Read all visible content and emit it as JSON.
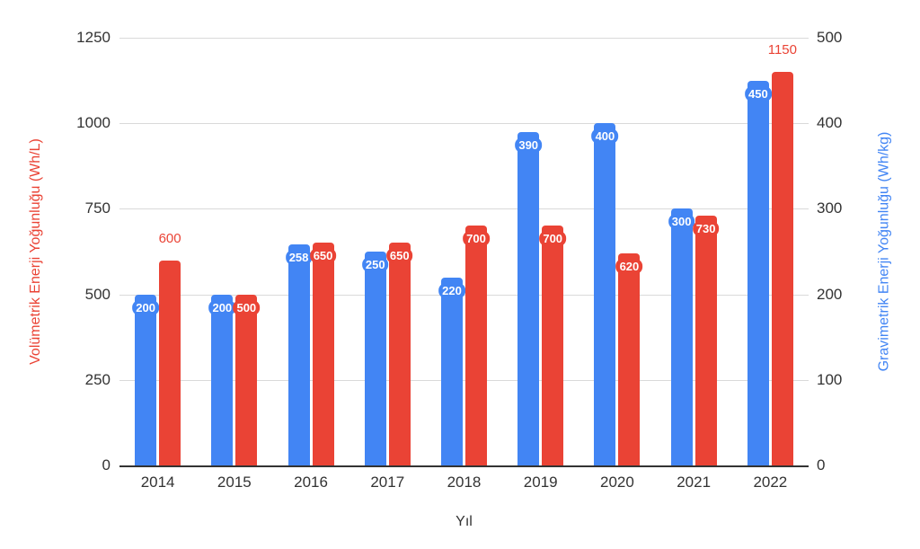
{
  "chart_data": {
    "type": "bar",
    "title": "",
    "categories": [
      "2014",
      "2015",
      "2016",
      "2017",
      "2018",
      "2019",
      "2020",
      "2021",
      "2022"
    ],
    "series": [
      {
        "name": "Gravimetrik Enerji Yoğunluğu (Wh/kg)",
        "axis": "right",
        "color": "#4285F4",
        "values": [
          200,
          200,
          258,
          250,
          220,
          390,
          400,
          300,
          450
        ],
        "label_style": [
          "pill",
          "pill",
          "pill",
          "pill",
          "pill",
          "pill",
          "pill",
          "pill",
          "pill"
        ]
      },
      {
        "name": "Volümetrik Enerji Yoğunluğu (Wh/L)",
        "axis": "left",
        "color": "#EA4335",
        "values": [
          600,
          500,
          650,
          650,
          700,
          700,
          620,
          730,
          1150
        ],
        "label_style": [
          "outside",
          "pill",
          "pill",
          "pill",
          "pill",
          "pill",
          "pill",
          "pill",
          "outside"
        ]
      }
    ],
    "xlabel": "Yıl",
    "axes": {
      "left": {
        "label": "Volümetrik Enerji Yoğunluğu (Wh/L)",
        "color": "#EA4335",
        "min": 0,
        "max": 1250,
        "ticks": [
          0,
          250,
          500,
          750,
          1000,
          1250
        ]
      },
      "right": {
        "label": "Gravimetrik Enerji Yoğunluğu (Wh/kg)",
        "color": "#4285F4",
        "min": 0,
        "max": 500,
        "ticks": [
          0,
          100,
          200,
          300,
          400,
          500
        ]
      }
    },
    "grid": true,
    "legend": "none",
    "background": "#ffffff",
    "text_color": "#333333",
    "gridline_color": "#d9d9d9"
  }
}
